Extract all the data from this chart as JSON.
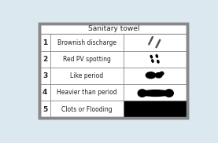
{
  "title": "Sanitary towel",
  "rows": [
    {
      "num": "1",
      "desc": "Brownish discharge"
    },
    {
      "num": "2",
      "desc": "Red PV spotting"
    },
    {
      "num": "3",
      "desc": "Like period"
    },
    {
      "num": "4",
      "desc": "Heavier than period"
    },
    {
      "num": "5",
      "desc": "Clots or Flooding"
    }
  ],
  "outer_bg": "#dce8f0",
  "table_bg": "#ffffff",
  "border_color": "#888888",
  "text_color": "#222222",
  "black": "#000000",
  "title_fontsize": 6.5,
  "body_fontsize": 5.5,
  "num_fontsize": 6.5
}
